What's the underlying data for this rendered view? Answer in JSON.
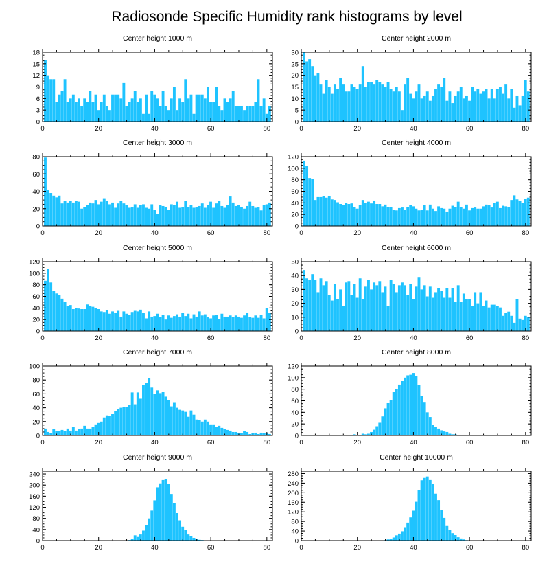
{
  "title": "Radiosonde Specific Humidity rank histograms by level",
  "bar_color": "#1ec3ff",
  "chart_data": [
    {
      "type": "bar",
      "title": "Center height 1000 m",
      "x_start": 1,
      "xlim": [
        0,
        82
      ],
      "ylim": [
        0,
        18
      ],
      "yticks": [
        0,
        3,
        6,
        9,
        12,
        15,
        18
      ],
      "xticks": [
        0,
        20,
        40,
        60,
        80
      ],
      "values": [
        16,
        12,
        11,
        11,
        5,
        7,
        8,
        11,
        5,
        6,
        7,
        5,
        6,
        4,
        6,
        5,
        8,
        5,
        7,
        3,
        5,
        7,
        4,
        3,
        7,
        7,
        7,
        6,
        10,
        4,
        5,
        6,
        8,
        5,
        6,
        2,
        7,
        2,
        8,
        7,
        6,
        4,
        8,
        4,
        3,
        6,
        9,
        3,
        6,
        5,
        11,
        6,
        7,
        2,
        7,
        7,
        7,
        6,
        9,
        5,
        5,
        9,
        4,
        3,
        6,
        5,
        6,
        8,
        4,
        4,
        4,
        3,
        4,
        4,
        4,
        5,
        11,
        4,
        6,
        2,
        4
      ]
    },
    {
      "type": "bar",
      "title": "Center height 2000 m",
      "x_start": 1,
      "xlim": [
        0,
        82
      ],
      "ylim": [
        0,
        30
      ],
      "yticks": [
        0,
        5,
        10,
        15,
        20,
        25,
        30
      ],
      "xticks": [
        0,
        20,
        40,
        60,
        80
      ],
      "values": [
        30,
        26,
        27,
        24,
        20,
        21,
        16,
        12,
        18,
        15,
        12,
        16,
        14,
        19,
        16,
        13,
        13,
        16,
        15,
        14,
        16,
        24,
        15,
        17,
        17,
        16,
        18,
        17,
        16,
        15,
        17,
        14,
        13,
        15,
        13,
        5,
        16,
        19,
        12,
        10,
        13,
        16,
        10,
        11,
        13,
        9,
        11,
        14,
        16,
        15,
        19,
        9,
        13,
        8,
        11,
        13,
        15,
        10,
        11,
        9,
        15,
        13,
        14,
        12,
        13,
        14,
        10,
        14,
        10,
        14,
        15,
        12,
        16,
        10,
        14,
        6,
        11,
        7,
        11,
        18,
        13
      ]
    },
    {
      "type": "bar",
      "title": "Center height 3000 m",
      "x_start": 1,
      "xlim": [
        0,
        82
      ],
      "ylim": [
        0,
        80
      ],
      "yticks": [
        0,
        20,
        40,
        60,
        80
      ],
      "xticks": [
        0,
        20,
        40,
        60,
        80
      ],
      "values": [
        79,
        42,
        38,
        35,
        33,
        35,
        26,
        29,
        27,
        29,
        27,
        29,
        28,
        20,
        22,
        24,
        27,
        26,
        30,
        25,
        28,
        32,
        29,
        25,
        27,
        21,
        26,
        29,
        26,
        24,
        21,
        22,
        25,
        21,
        24,
        25,
        21,
        20,
        25,
        19,
        14,
        24,
        23,
        22,
        19,
        25,
        24,
        28,
        21,
        22,
        29,
        22,
        24,
        21,
        22,
        23,
        26,
        21,
        24,
        28,
        21,
        26,
        29,
        23,
        21,
        24,
        34,
        27,
        23,
        24,
        22,
        20,
        23,
        28,
        23,
        21,
        22,
        18,
        24,
        25,
        27
      ]
    },
    {
      "type": "bar",
      "title": "Center height 4000 m",
      "x_start": 1,
      "xlim": [
        0,
        82
      ],
      "ylim": [
        0,
        120
      ],
      "yticks": [
        0,
        20,
        40,
        60,
        80,
        100,
        120
      ],
      "xticks": [
        0,
        20,
        40,
        60,
        80
      ],
      "values": [
        113,
        104,
        83,
        81,
        45,
        50,
        50,
        52,
        49,
        52,
        46,
        45,
        41,
        38,
        36,
        40,
        38,
        39,
        33,
        30,
        36,
        45,
        40,
        42,
        39,
        44,
        38,
        38,
        34,
        37,
        33,
        33,
        28,
        27,
        31,
        32,
        28,
        33,
        36,
        34,
        30,
        27,
        28,
        36,
        27,
        37,
        30,
        26,
        34,
        31,
        30,
        25,
        30,
        35,
        33,
        42,
        33,
        30,
        37,
        27,
        31,
        32,
        30,
        30,
        34,
        37,
        36,
        32,
        40,
        42,
        31,
        35,
        34,
        33,
        45,
        53,
        46,
        44,
        40,
        47,
        49
      ]
    },
    {
      "type": "bar",
      "title": "Center height 5000 m",
      "x_start": 1,
      "xlim": [
        0,
        82
      ],
      "ylim": [
        0,
        120
      ],
      "yticks": [
        0,
        20,
        40,
        60,
        80,
        100,
        120
      ],
      "xticks": [
        0,
        20,
        40,
        60,
        80
      ],
      "values": [
        87,
        108,
        84,
        69,
        65,
        62,
        56,
        50,
        43,
        45,
        38,
        40,
        39,
        38,
        38,
        46,
        44,
        42,
        40,
        38,
        34,
        33,
        36,
        30,
        34,
        32,
        35,
        25,
        34,
        30,
        28,
        33,
        35,
        34,
        37,
        32,
        22,
        34,
        25,
        26,
        30,
        24,
        28,
        20,
        27,
        23,
        26,
        29,
        25,
        32,
        26,
        30,
        22,
        29,
        25,
        34,
        27,
        29,
        24,
        22,
        27,
        28,
        21,
        30,
        25,
        25,
        27,
        24,
        27,
        25,
        23,
        27,
        31,
        24,
        23,
        27,
        23,
        28,
        22,
        40,
        31
      ]
    },
    {
      "type": "bar",
      "title": "Center height 6000 m",
      "x_start": 1,
      "xlim": [
        0,
        82
      ],
      "ylim": [
        0,
        50
      ],
      "yticks": [
        0,
        10,
        20,
        30,
        40,
        50
      ],
      "xticks": [
        0,
        20,
        40,
        60,
        80
      ],
      "values": [
        44,
        38,
        37,
        41,
        37,
        28,
        38,
        33,
        36,
        26,
        22,
        34,
        23,
        30,
        18,
        35,
        36,
        26,
        34,
        24,
        38,
        23,
        32,
        37,
        30,
        35,
        33,
        36,
        28,
        32,
        18,
        37,
        34,
        28,
        33,
        35,
        33,
        26,
        34,
        23,
        32,
        39,
        30,
        33,
        25,
        32,
        24,
        28,
        31,
        29,
        24,
        31,
        24,
        31,
        21,
        33,
        21,
        27,
        23,
        23,
        18,
        28,
        20,
        28,
        18,
        22,
        17,
        19,
        19,
        18,
        17,
        11,
        13,
        14,
        11,
        6,
        23,
        9,
        8,
        11,
        10
      ]
    },
    {
      "type": "bar",
      "title": "Center height 7000 m",
      "x_start": 1,
      "xlim": [
        0,
        82
      ],
      "ylim": [
        0,
        100
      ],
      "yticks": [
        0,
        20,
        40,
        60,
        80,
        100
      ],
      "xticks": [
        0,
        20,
        40,
        60,
        80
      ],
      "values": [
        10,
        5,
        3,
        9,
        6,
        6,
        8,
        6,
        10,
        7,
        12,
        7,
        9,
        10,
        14,
        10,
        10,
        12,
        16,
        18,
        20,
        26,
        29,
        28,
        31,
        35,
        38,
        40,
        41,
        41,
        44,
        62,
        45,
        62,
        53,
        73,
        76,
        83,
        69,
        60,
        65,
        61,
        63,
        56,
        51,
        42,
        48,
        40,
        37,
        36,
        34,
        27,
        36,
        30,
        23,
        22,
        20,
        23,
        20,
        16,
        16,
        12,
        14,
        11,
        9,
        8,
        7,
        5,
        5,
        4,
        3,
        6,
        5,
        2,
        3,
        4,
        2,
        4,
        3,
        4,
        2
      ]
    },
    {
      "type": "bar",
      "title": "Center height 8000 m",
      "x_start": 1,
      "xlim": [
        0,
        82
      ],
      "ylim": [
        0,
        120
      ],
      "yticks": [
        0,
        20,
        40,
        60,
        80,
        100,
        120
      ],
      "xticks": [
        0,
        20,
        40,
        60,
        80
      ],
      "values": [
        0,
        0,
        0,
        0,
        0,
        0,
        0,
        1,
        1,
        0,
        0,
        0,
        0,
        0,
        0,
        0,
        0,
        0,
        2,
        1,
        1,
        3,
        2,
        3,
        6,
        10,
        16,
        22,
        33,
        47,
        56,
        61,
        76,
        80,
        88,
        95,
        100,
        104,
        105,
        108,
        103,
        87,
        68,
        58,
        40,
        32,
        18,
        15,
        12,
        9,
        7,
        6,
        3,
        2,
        2,
        0,
        1,
        0,
        1,
        0,
        1,
        0,
        0,
        0,
        0,
        0,
        0,
        0,
        0,
        0,
        0,
        0,
        0,
        1,
        0,
        0,
        0,
        0,
        0,
        0,
        0
      ]
    },
    {
      "type": "bar",
      "title": "Center height 9000 m",
      "x_start": 1,
      "xlim": [
        0,
        82
      ],
      "ylim": [
        0,
        250
      ],
      "yticks": [
        0,
        40,
        80,
        120,
        160,
        200,
        240
      ],
      "xticks": [
        0,
        20,
        40,
        60,
        80
      ],
      "values": [
        0,
        0,
        0,
        0,
        0,
        0,
        0,
        0,
        0,
        0,
        0,
        0,
        0,
        0,
        0,
        0,
        0,
        0,
        0,
        0,
        0,
        0,
        0,
        0,
        0,
        0,
        0,
        0,
        0,
        1,
        2,
        7,
        19,
        13,
        22,
        36,
        55,
        80,
        108,
        145,
        192,
        206,
        218,
        222,
        203,
        168,
        135,
        99,
        73,
        50,
        38,
        22,
        16,
        10,
        5,
        3,
        2,
        1,
        1,
        0,
        0,
        0,
        0,
        0,
        0,
        0,
        0,
        0,
        0,
        0,
        0,
        0,
        0,
        0,
        0,
        0,
        0,
        0,
        0,
        0,
        0
      ]
    },
    {
      "type": "bar",
      "title": "Center height 10000 m",
      "x_start": 1,
      "xlim": [
        0,
        82
      ],
      "ylim": [
        0,
        290
      ],
      "yticks": [
        0,
        40,
        80,
        120,
        160,
        200,
        240,
        280
      ],
      "xticks": [
        0,
        20,
        40,
        60,
        80
      ],
      "values": [
        0,
        0,
        0,
        0,
        0,
        0,
        0,
        0,
        0,
        0,
        0,
        0,
        0,
        0,
        0,
        0,
        0,
        0,
        0,
        0,
        0,
        0,
        0,
        0,
        0,
        0,
        0,
        0,
        0,
        2,
        5,
        8,
        13,
        22,
        29,
        39,
        56,
        75,
        97,
        125,
        162,
        210,
        252,
        262,
        268,
        253,
        236,
        196,
        169,
        128,
        95,
        61,
        44,
        31,
        23,
        14,
        9,
        5,
        2,
        1,
        1,
        0,
        0,
        0,
        0,
        0,
        0,
        0,
        0,
        0,
        0,
        0,
        0,
        0,
        0,
        0,
        0,
        0,
        0,
        0,
        0
      ]
    }
  ]
}
